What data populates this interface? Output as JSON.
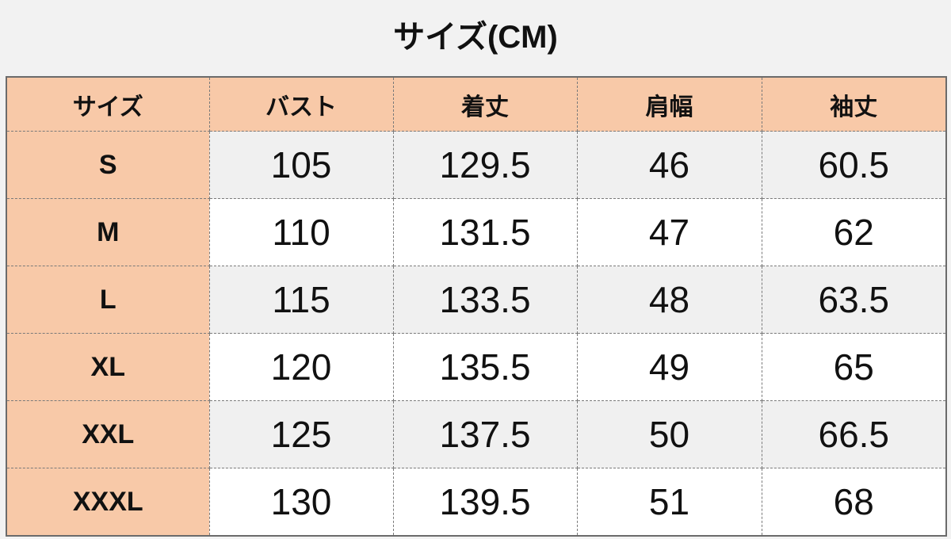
{
  "title": "サイズ(CM)",
  "colors": {
    "header_bg": "#f8c9a8",
    "row_alt_bg": "#f0f0f0",
    "row_bg": "#ffffff"
  },
  "table": {
    "headers": [
      "サイズ",
      "バスト",
      "着丈",
      "肩幅",
      "袖丈"
    ],
    "rows": [
      [
        "S",
        "105",
        "129.5",
        "46",
        "60.5"
      ],
      [
        "M",
        "110",
        "131.5",
        "47",
        "62"
      ],
      [
        "L",
        "115",
        "133.5",
        "48",
        "63.5"
      ],
      [
        "XL",
        "120",
        "135.5",
        "49",
        "65"
      ],
      [
        "XXL",
        "125",
        "137.5",
        "50",
        "66.5"
      ],
      [
        "XXXL",
        "130",
        "139.5",
        "51",
        "68"
      ]
    ]
  }
}
